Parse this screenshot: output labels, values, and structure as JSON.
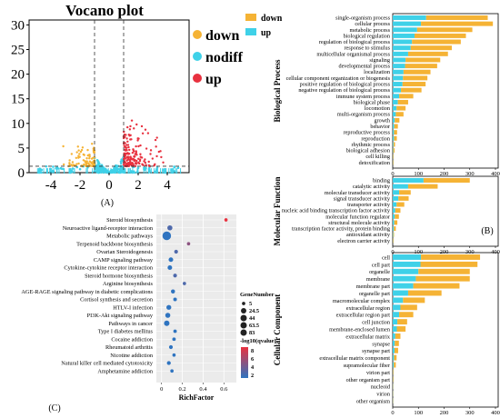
{
  "colors": {
    "down": "#f5b335",
    "nodiff": "#3fd1e8",
    "up": "#e8313f",
    "dot_high": "#e8313f",
    "dot_low": "#2f74c0"
  },
  "volcano": {
    "title": "Vocano plot",
    "panel_label": "(A)",
    "x_ticks": [
      "-4",
      "-2",
      "0",
      "2",
      "4"
    ],
    "y_ticks": [
      "0",
      "5",
      "10",
      "15",
      "20",
      "25",
      "30"
    ],
    "xlim": [
      -5.5,
      5.5
    ],
    "ylim": [
      0,
      31
    ],
    "legend": [
      {
        "name": "down",
        "color": "#f5b335"
      },
      {
        "name": "nodiff",
        "color": "#3fd1e8"
      },
      {
        "name": "up",
        "color": "#e8313f"
      }
    ]
  },
  "go": {
    "panel_label": "(B)",
    "legend": [
      {
        "name": "down",
        "color": "#f5b335"
      },
      {
        "name": "up",
        "color": "#3fd1e8"
      }
    ],
    "x_ticks": [
      "0",
      "100",
      "200",
      "300",
      "400"
    ],
    "groups": [
      {
        "name": "Biological Process",
        "terms": [
          {
            "t": "single-organism process",
            "up": 130,
            "down": 240
          },
          {
            "t": "cellular process",
            "up": 110,
            "down": 280
          },
          {
            "t": "metabolic process",
            "up": 95,
            "down": 215
          },
          {
            "t": "biological regulation",
            "up": 85,
            "down": 200
          },
          {
            "t": "regulation of biological process",
            "up": 75,
            "down": 190
          },
          {
            "t": "response to stimulus",
            "up": 70,
            "down": 160
          },
          {
            "t": "multicellular organismal process",
            "up": 60,
            "down": 155
          },
          {
            "t": "signaling",
            "up": 50,
            "down": 135
          },
          {
            "t": "developmental process",
            "up": 48,
            "down": 125
          },
          {
            "t": "localization",
            "up": 42,
            "down": 105
          },
          {
            "t": "cellular component organization or biogenesis",
            "up": 40,
            "down": 95
          },
          {
            "t": "positive regulation of biological process",
            "up": 38,
            "down": 90
          },
          {
            "t": "negative regulation of biological process",
            "up": 32,
            "down": 80
          },
          {
            "t": "immune system process",
            "up": 25,
            "down": 55
          },
          {
            "t": "biological phase",
            "up": 20,
            "down": 40
          },
          {
            "t": "locomotion",
            "up": 15,
            "down": 35
          },
          {
            "t": "multi-organism process",
            "up": 12,
            "down": 30
          },
          {
            "t": "growth",
            "up": 8,
            "down": 18
          },
          {
            "t": "behavior",
            "up": 6,
            "down": 14
          },
          {
            "t": "reproductive process",
            "up": 5,
            "down": 12
          },
          {
            "t": "reproduction",
            "up": 5,
            "down": 11
          },
          {
            "t": "rhythmic process",
            "up": 3,
            "down": 6
          },
          {
            "t": "biological adhesion",
            "up": 2,
            "down": 5
          },
          {
            "t": "cell killing",
            "up": 1,
            "down": 2
          },
          {
            "t": "detoxification",
            "up": 1,
            "down": 2
          }
        ]
      },
      {
        "name": "Molecular Function",
        "terms": [
          {
            "t": "binding",
            "up": 120,
            "down": 180
          },
          {
            "t": "catalytic activity",
            "up": 60,
            "down": 115
          },
          {
            "t": "molecular transducer activity",
            "up": 25,
            "down": 45
          },
          {
            "t": "signal transducer activity",
            "up": 22,
            "down": 40
          },
          {
            "t": "transporter activity",
            "up": 15,
            "down": 30
          },
          {
            "t": "nucleic acid binding transcription factor activity",
            "up": 10,
            "down": 20
          },
          {
            "t": "molecular function regulator",
            "up": 8,
            "down": 16
          },
          {
            "t": "structural molecule activity",
            "up": 6,
            "down": 12
          },
          {
            "t": "transcription factor activity, protein binding",
            "up": 4,
            "down": 8
          },
          {
            "t": "antioxidant activity",
            "up": 2,
            "down": 3
          },
          {
            "t": "electron carrier activity",
            "up": 1,
            "down": 2
          }
        ]
      },
      {
        "name": "Cellular Component",
        "terms": [
          {
            "t": "cell",
            "up": 110,
            "down": 230
          },
          {
            "t": "cell part",
            "up": 108,
            "down": 222
          },
          {
            "t": "organelle",
            "up": 100,
            "down": 200
          },
          {
            "t": "membrane",
            "up": 90,
            "down": 210
          },
          {
            "t": "membrane part",
            "up": 80,
            "down": 180
          },
          {
            "t": "organelle part",
            "up": 60,
            "down": 130
          },
          {
            "t": "macromolecular complex",
            "up": 40,
            "down": 85
          },
          {
            "t": "extracellular region",
            "up": 30,
            "down": 65
          },
          {
            "t": "extracellular region part",
            "up": 25,
            "down": 55
          },
          {
            "t": "cell junction",
            "up": 18,
            "down": 38
          },
          {
            "t": "membrane-enclosed lumen",
            "up": 16,
            "down": 34
          },
          {
            "t": "extracellular matrix",
            "up": 10,
            "down": 20
          },
          {
            "t": "synapse",
            "up": 8,
            "down": 16
          },
          {
            "t": "synapse part",
            "up": 7,
            "down": 14
          },
          {
            "t": "extracellular matrix component",
            "up": 5,
            "down": 10
          },
          {
            "t": "supramolecular fiber",
            "up": 4,
            "down": 8
          },
          {
            "t": "virion part",
            "up": 1,
            "down": 2
          },
          {
            "t": "other organism part",
            "up": 1,
            "down": 2
          },
          {
            "t": "nucleoid",
            "up": 1,
            "down": 1
          },
          {
            "t": "virion",
            "up": 1,
            "down": 1
          },
          {
            "t": "other organism",
            "up": 1,
            "down": 1
          }
        ]
      }
    ]
  },
  "kegg": {
    "panel_label": "(C)",
    "xlabel": "RichFactor",
    "x_ticks": [
      "0",
      "0.2",
      "0.4",
      "0.6"
    ],
    "xlim": [
      -0.05,
      0.72
    ],
    "legend_size_title": "GeneNumber",
    "legend_sizes": [
      "5",
      "24.5",
      "44",
      "63.5",
      "83"
    ],
    "legend_color_title": "-log10(qvalue)",
    "legend_color_ticks": [
      "8",
      "6",
      "4",
      "2"
    ],
    "pathways": [
      {
        "name": "Steroid biosynthesis",
        "rich": 0.62,
        "genes": 5,
        "q": 8
      },
      {
        "name": "Neuroactive ligand-receptor interaction",
        "rich": 0.08,
        "genes": 20,
        "q": 3
      },
      {
        "name": "Metabolic pathways",
        "rich": 0.05,
        "genes": 83,
        "q": 2
      },
      {
        "name": "Terpenoid backbone biosynthesis",
        "rich": 0.26,
        "genes": 5,
        "q": 5
      },
      {
        "name": "Ovarian Steroidogenesis",
        "rich": 0.14,
        "genes": 8,
        "q": 3
      },
      {
        "name": "CAMP signaling pathway",
        "rich": 0.09,
        "genes": 15,
        "q": 2
      },
      {
        "name": "Cytokine-cytokine receptor interaction",
        "rich": 0.08,
        "genes": 15,
        "q": 2
      },
      {
        "name": "Steroid hormone biosynthesis",
        "rich": 0.13,
        "genes": 8,
        "q": 3
      },
      {
        "name": "Arginine biosynthesis",
        "rich": 0.22,
        "genes": 5,
        "q": 3
      },
      {
        "name": "AGE-RAGE signaling pathway in diabetic complications",
        "rich": 0.11,
        "genes": 10,
        "q": 2
      },
      {
        "name": "Cortisol synthesis and secretion",
        "rich": 0.13,
        "genes": 7,
        "q": 2
      },
      {
        "name": "HTLV-I infection",
        "rich": 0.07,
        "genes": 18,
        "q": 2
      },
      {
        "name": "PI3K-Akt signaling pathway",
        "rich": 0.06,
        "genes": 20,
        "q": 2
      },
      {
        "name": "Pathways in cancer",
        "rich": 0.05,
        "genes": 25,
        "q": 2
      },
      {
        "name": "Type I diabetes mellitus",
        "rich": 0.13,
        "genes": 6,
        "q": 2
      },
      {
        "name": "Cocaine addiction",
        "rich": 0.12,
        "genes": 6,
        "q": 2
      },
      {
        "name": "Rheumatoid arthritis",
        "rich": 0.09,
        "genes": 8,
        "q": 2
      },
      {
        "name": "Nicotine addiction",
        "rich": 0.12,
        "genes": 5,
        "q": 2
      },
      {
        "name": "Natural killer cell mediated cytotoxicity",
        "rich": 0.07,
        "genes": 9,
        "q": 2
      },
      {
        "name": "Amphetamine addiction",
        "rich": 0.1,
        "genes": 5,
        "q": 2
      }
    ]
  },
  "chart_data": [
    {
      "type": "scatter",
      "title": "Vocano plot",
      "x_range": [
        -5.5,
        5.5
      ],
      "y_range": [
        0,
        31
      ],
      "series": [
        {
          "name": "down"
        },
        {
          "name": "nodiff"
        },
        {
          "name": "up"
        }
      ]
    },
    {
      "type": "bar",
      "orientation": "horizontal",
      "stacked": true,
      "series": [
        {
          "name": "down"
        },
        {
          "name": "up"
        }
      ],
      "groups": [
        "Biological Process",
        "Molecular Function",
        "Cellular Component"
      ],
      "x_range": [
        0,
        420
      ]
    },
    {
      "type": "scatter",
      "xlabel": "RichFactor",
      "x_range": [
        -0.05,
        0.72
      ],
      "legend": [
        "GeneNumber",
        "-log10(qvalue)"
      ]
    }
  ]
}
